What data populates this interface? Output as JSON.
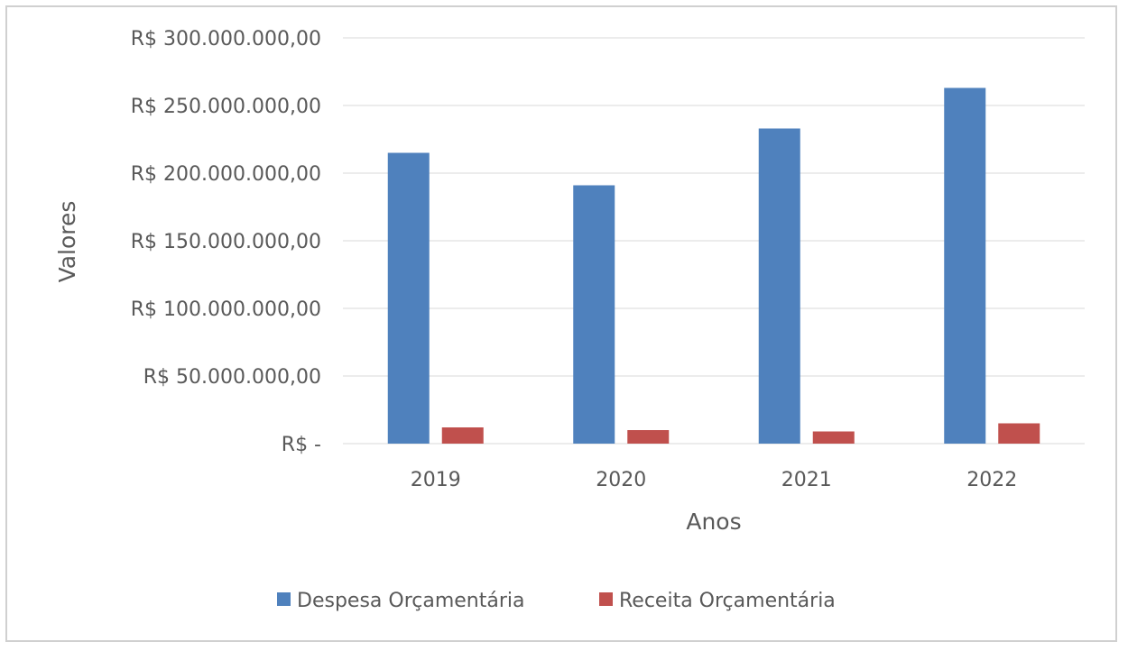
{
  "chart_data": {
    "type": "bar",
    "title": "",
    "xlabel": "Anos",
    "ylabel": "Valores",
    "categories": [
      "2019",
      "2020",
      "2021",
      "2022"
    ],
    "series": [
      {
        "name": "Despesa Orçamentária",
        "color": "#4f81bd",
        "values": [
          215000000,
          191000000,
          233000000,
          263000000
        ]
      },
      {
        "name": "Receita Orçamentária",
        "color": "#c0504d",
        "values": [
          12000000,
          10000000,
          9000000,
          15000000
        ]
      }
    ],
    "ylim": [
      0,
      300000000
    ],
    "yticks": [
      {
        "value": 0,
        "label": "R$ -"
      },
      {
        "value": 50000000,
        "label": "R$ 50.000.000,00"
      },
      {
        "value": 100000000,
        "label": "R$ 100.000.000,00"
      },
      {
        "value": 150000000,
        "label": "R$ 150.000.000,00"
      },
      {
        "value": 200000000,
        "label": "R$ 200.000.000,00"
      },
      {
        "value": 250000000,
        "label": "R$ 250.000.000,00"
      },
      {
        "value": 300000000,
        "label": "R$ 300.000.000,00"
      }
    ],
    "grid": true,
    "legend_position": "bottom",
    "gridline_color": "#d9d9d9"
  }
}
